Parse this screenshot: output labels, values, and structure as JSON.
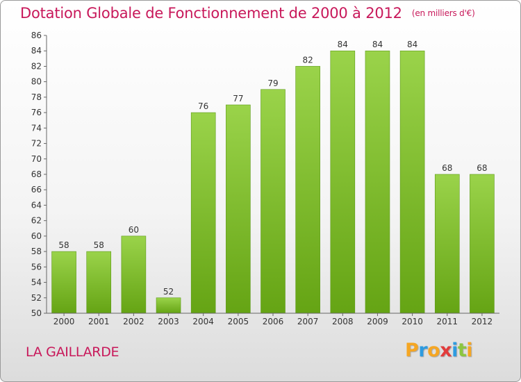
{
  "chart_data": {
    "type": "bar",
    "title": "Dotation Globale de Fonctionnement de 2000 à 2012",
    "subtitle": "(en milliers d'€)",
    "categories": [
      "2000",
      "2001",
      "2002",
      "2003",
      "2004",
      "2005",
      "2006",
      "2007",
      "2008",
      "2009",
      "2010",
      "2011",
      "2012"
    ],
    "values": [
      58,
      58,
      60,
      52,
      76,
      77,
      79,
      82,
      84,
      84,
      84,
      68,
      68
    ],
    "ylim": [
      50,
      86
    ],
    "yticks": [
      50,
      52,
      54,
      56,
      58,
      60,
      62,
      64,
      66,
      68,
      70,
      72,
      74,
      76,
      78,
      80,
      82,
      84,
      86
    ],
    "grid": false,
    "bar_color": "#7fc035"
  },
  "footer": {
    "commune": "LA GAILLARDE",
    "brand_letters": [
      {
        "ch": "P",
        "color": "#f5a623"
      },
      {
        "ch": "r",
        "color": "#2e9be0"
      },
      {
        "ch": "o",
        "color": "#f5a623"
      },
      {
        "ch": "x",
        "color": "#e23b3b"
      },
      {
        "ch": "i",
        "color": "#2e9be0"
      },
      {
        "ch": "t",
        "color": "#8cc63f"
      },
      {
        "ch": "i",
        "color": "#f5a623"
      }
    ]
  },
  "colors": {
    "title": "#c8185a",
    "axis_text": "#333333"
  }
}
